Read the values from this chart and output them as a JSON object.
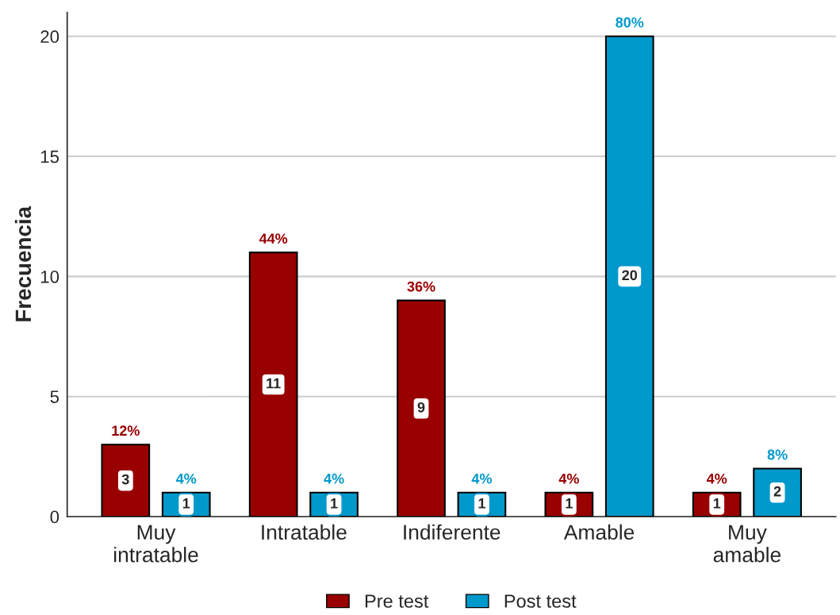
{
  "chart_data": {
    "type": "bar",
    "ylabel": "Frecuencia",
    "categories": [
      "Muy\nintratable",
      "Intratable",
      "Indiferente",
      "Amable",
      "Muy\namable"
    ],
    "series": [
      {
        "name": "Pre test",
        "color": "#990000",
        "values": [
          3,
          11,
          9,
          1,
          1
        ]
      },
      {
        "name": "Post test",
        "color": "#0099cc",
        "values": [
          1,
          1,
          1,
          20,
          2
        ]
      }
    ],
    "annotations": [
      "12%",
      "44%",
      "36%",
      "4%",
      "4%",
      "4%",
      "4%",
      "4%",
      "80%",
      "8%"
    ],
    "ylim": [
      0,
      21
    ],
    "yticks": [
      0,
      5,
      10,
      15,
      20
    ],
    "grid": "y",
    "legend": "bottom",
    "data_labels": true
  }
}
